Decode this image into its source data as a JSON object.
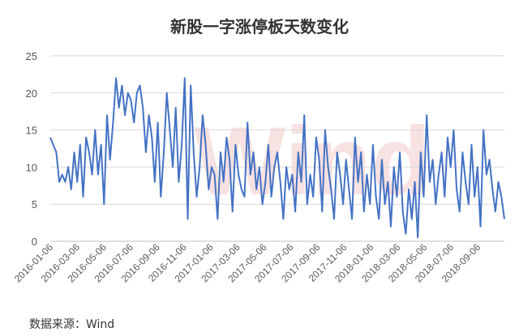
{
  "chart_data": {
    "type": "line",
    "title": "新股一字涨停板天数变化",
    "xlabel": "",
    "ylabel": "",
    "ylim": [
      0,
      25
    ],
    "yticks": [
      0,
      5,
      10,
      15,
      20,
      25
    ],
    "grid": {
      "x": false,
      "y": true
    },
    "legend": "none",
    "xticks": [
      "2016-01-06",
      "2016-03-06",
      "2016-05-06",
      "2016-07-06",
      "2016-09-06",
      "2016-11-06",
      "2017-01-06",
      "2017-03-06",
      "2017-05-06",
      "2017-07-06",
      "2017-09-06",
      "2017-11-06",
      "2018-01-06",
      "2018-03-06",
      "2018-05-06",
      "2018-07-06",
      "2018-09-06"
    ],
    "series": [
      {
        "color": "#4472c4",
        "values": [
          14,
          13,
          12,
          8,
          9,
          8,
          10,
          7,
          12,
          8,
          13,
          6,
          14,
          12,
          9,
          15,
          9,
          13,
          5,
          17,
          11,
          16,
          22,
          18,
          21,
          17,
          20,
          19,
          16,
          20,
          21,
          18,
          12,
          17,
          14,
          8,
          16,
          6,
          12,
          20,
          15,
          10,
          18,
          8,
          13,
          22,
          3,
          21,
          12,
          6,
          10,
          17,
          13,
          7,
          10,
          9,
          3,
          12,
          8,
          14,
          11,
          4,
          13,
          9,
          7,
          6,
          16,
          9,
          12,
          7,
          10,
          5,
          8,
          13,
          6,
          10,
          12,
          8,
          3,
          10,
          7,
          9,
          4,
          12,
          8,
          17,
          5,
          9,
          6,
          14,
          11,
          4,
          15,
          10,
          7,
          3,
          12,
          9,
          5,
          11,
          7,
          3,
          14,
          8,
          12,
          4,
          9,
          5,
          13,
          6,
          3,
          11,
          5,
          8,
          2,
          10,
          6,
          12,
          4,
          1,
          7,
          3,
          8,
          0.5,
          12,
          6,
          17,
          8,
          11,
          5,
          9,
          12,
          6,
          14,
          10,
          15,
          7,
          4,
          12,
          8,
          5,
          13,
          6,
          10,
          2,
          15,
          9,
          11,
          7,
          4,
          8,
          6,
          3
        ],
        "first_date": "2016-01-06",
        "last_date": "2018-10-15"
      }
    ]
  },
  "watermark": "Wind",
  "source_note": "数据来源：Wind"
}
